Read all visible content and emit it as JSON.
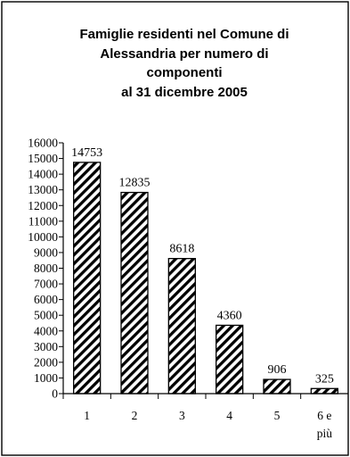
{
  "chart_data": {
    "type": "bar",
    "title_lines": [
      "Famiglie residenti nel Comune di",
      "Alessandria per numero di",
      "componenti",
      "al 31 dicembre 2005"
    ],
    "categories": [
      [
        "1"
      ],
      [
        "2"
      ],
      [
        "3"
      ],
      [
        "4"
      ],
      [
        "5"
      ],
      [
        "6 e",
        "più"
      ]
    ],
    "values": [
      14753,
      12835,
      8618,
      4360,
      906,
      325
    ],
    "data_labels": [
      "14753",
      "12835",
      "8618",
      "4360",
      "906",
      "325"
    ],
    "y_ticks": [
      "0",
      "1000",
      "2000",
      "3000",
      "4000",
      "5000",
      "6000",
      "7000",
      "8000",
      "9000",
      "10000",
      "11000",
      "12000",
      "13000",
      "14000",
      "15000",
      "16000"
    ],
    "ylim": [
      0,
      16000
    ],
    "xlabel": "",
    "ylabel": "",
    "legend": "none",
    "grid": false,
    "bar_fill": "diagonal-hatch",
    "colors": {
      "bar_stroke": "#000000",
      "hatch": "#000000",
      "background": "#ffffff",
      "border": "#000000"
    }
  }
}
